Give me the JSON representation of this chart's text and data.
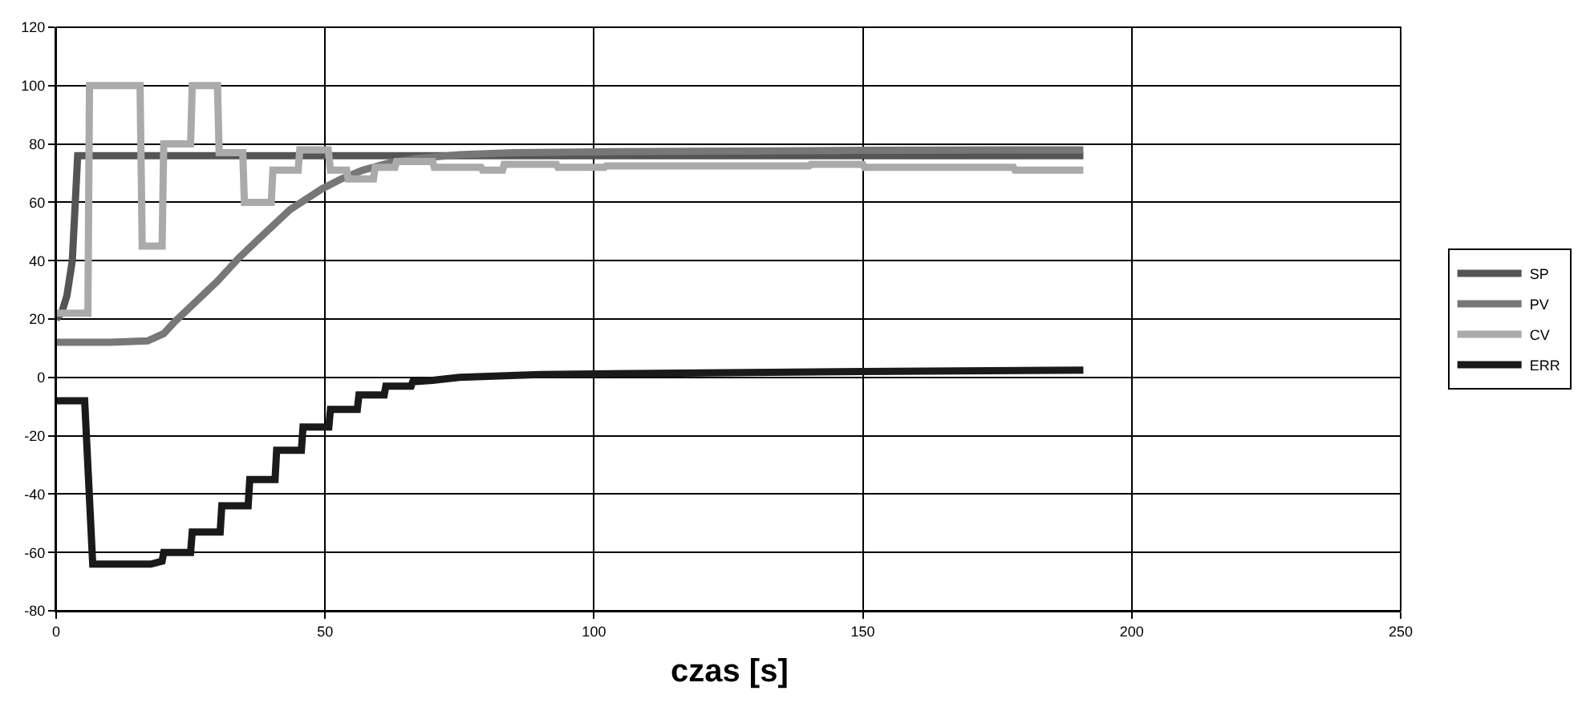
{
  "chart_data": {
    "type": "line",
    "xlabel": "czas [s]",
    "xlim": [
      0,
      250
    ],
    "xticks": [
      0,
      50,
      100,
      150,
      200,
      250
    ],
    "ylim": [
      -80,
      120
    ],
    "yticks": [
      -80,
      -60,
      -40,
      -20,
      0,
      20,
      40,
      60,
      80,
      100,
      120
    ],
    "grid": true,
    "legend": "right",
    "marker": "none",
    "line_style": "solid",
    "series": [
      {
        "name": "SP",
        "color": "#555555",
        "x": [
          0,
          1,
          2,
          3,
          4,
          5,
          191
        ],
        "values": [
          20,
          22,
          28,
          40,
          76,
          76,
          76
        ]
      },
      {
        "name": "PV",
        "color": "#777777",
        "x": [
          0,
          10,
          17,
          20,
          22,
          26,
          30,
          34,
          38,
          43.5,
          49.4,
          53,
          57,
          62,
          67,
          75,
          85,
          100,
          150,
          191
        ],
        "values": [
          12,
          12,
          12.5,
          15,
          19,
          26,
          33,
          41,
          48,
          57.5,
          64.6,
          68,
          71,
          73.5,
          75,
          76.3,
          77,
          77.3,
          77.8,
          78
        ]
      },
      {
        "name": "CV",
        "color": "#aaaaaa",
        "x": [
          0,
          5.9,
          6.2,
          15.6,
          16,
          19.7,
          20,
          25,
          25.3,
          30,
          30.3,
          34.7,
          35,
          40,
          40.3,
          45,
          45.3,
          50.6,
          51,
          54,
          54.3,
          59,
          59.3,
          63,
          63.3,
          70,
          70.3,
          79,
          79.3,
          83,
          83.3,
          93,
          93.3,
          102,
          102.3,
          140,
          140.3,
          150,
          150.3,
          178,
          178.3,
          191
        ],
        "values": [
          22,
          22,
          100,
          100,
          45,
          45,
          80,
          80,
          100,
          100,
          77,
          77,
          60,
          60,
          71,
          71,
          78,
          78,
          71,
          71,
          68,
          68,
          72,
          72,
          74,
          74,
          72,
          72,
          71,
          71,
          73,
          73,
          72,
          72,
          72.5,
          72.5,
          73,
          73,
          72,
          72,
          71,
          71
        ]
      },
      {
        "name": "ERR",
        "color": "#1a1a1a",
        "x": [
          0,
          5.3,
          6.8,
          17.6,
          19.7,
          20,
          25,
          25.3,
          30.5,
          30.8,
          35.7,
          36,
          40.7,
          41,
          45.6,
          45.9,
          50.7,
          51,
          56,
          56.3,
          61,
          61.3,
          66,
          66.3,
          70,
          75,
          90,
          120,
          150,
          191
        ],
        "values": [
          -8,
          -8,
          -64,
          -64,
          -63,
          -60,
          -60,
          -53,
          -53,
          -44,
          -44,
          -35,
          -35,
          -25,
          -25,
          -17,
          -17,
          -11,
          -11,
          -6,
          -6,
          -3,
          -3,
          -1.5,
          -1,
          0,
          1,
          1.5,
          2,
          2.5
        ]
      }
    ]
  }
}
